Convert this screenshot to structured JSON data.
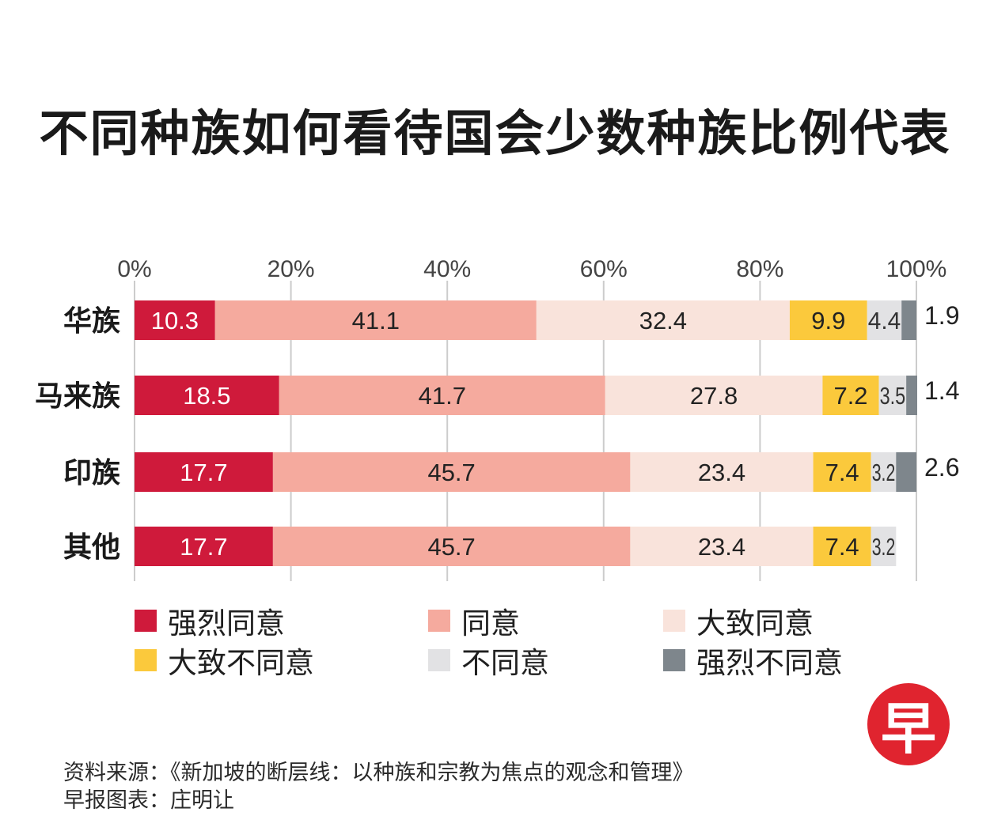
{
  "title": "不同种族如何看待国会少数种族比例代表",
  "chart_data": {
    "type": "bar",
    "orientation": "horizontal",
    "stacked": true,
    "title": "不同种族如何看待国会少数种族比例代表",
    "x_ticks": [
      "0%",
      "20%",
      "40%",
      "60%",
      "80%",
      "100%"
    ],
    "xlim": [
      0,
      100
    ],
    "categories": [
      "华族",
      "马来族",
      "印族",
      "其他"
    ],
    "series": [
      {
        "name": "强烈同意",
        "color": "#cf1a3b",
        "label_color": "#ffffff",
        "values": [
          10.3,
          18.5,
          17.7,
          17.7
        ],
        "labels": [
          "10.3",
          "18.5",
          "17.7",
          "17.7"
        ]
      },
      {
        "name": "同意",
        "color": "#f5aa9e",
        "label_color": "#222222",
        "values": [
          41.1,
          41.7,
          45.7,
          45.7
        ],
        "labels": [
          "41.1",
          "41.7",
          "45.7",
          "45.7"
        ]
      },
      {
        "name": "大致同意",
        "color": "#f9e3db",
        "label_color": "#222222",
        "values": [
          32.4,
          27.8,
          23.4,
          23.4
        ],
        "labels": [
          "32.4",
          "27.8",
          "23.4",
          "23.4"
        ]
      },
      {
        "name": "大致不同意",
        "color": "#fbc93c",
        "label_color": "#222222",
        "values": [
          9.9,
          7.2,
          7.4,
          7.4
        ],
        "labels": [
          "9.9",
          "7.2",
          "7.4",
          "7.4"
        ]
      },
      {
        "name": "不同意",
        "color": "#e2e2e4",
        "label_color": "#333333",
        "values": [
          4.4,
          3.5,
          3.2,
          3.2
        ],
        "labels": [
          "4.4",
          "3.5",
          "3.2",
          "3.2"
        ]
      },
      {
        "name": "强烈不同意",
        "color": "#7e868c",
        "label_color": "#222222",
        "values": [
          1.9,
          1.4,
          2.6,
          0
        ],
        "labels": [
          "1.9",
          "1.4",
          "2.6",
          ""
        ]
      }
    ],
    "legend": {
      "position": "bottom",
      "items": [
        "强烈同意",
        "同意",
        "大致同意",
        "大致不同意",
        "不同意",
        "强烈不同意"
      ]
    }
  },
  "source": "资料来源：《新加坡的断层线：以种族和宗教为焦点的观念和管理》",
  "credit": "早报图表：庄明让",
  "logo_text": "早"
}
